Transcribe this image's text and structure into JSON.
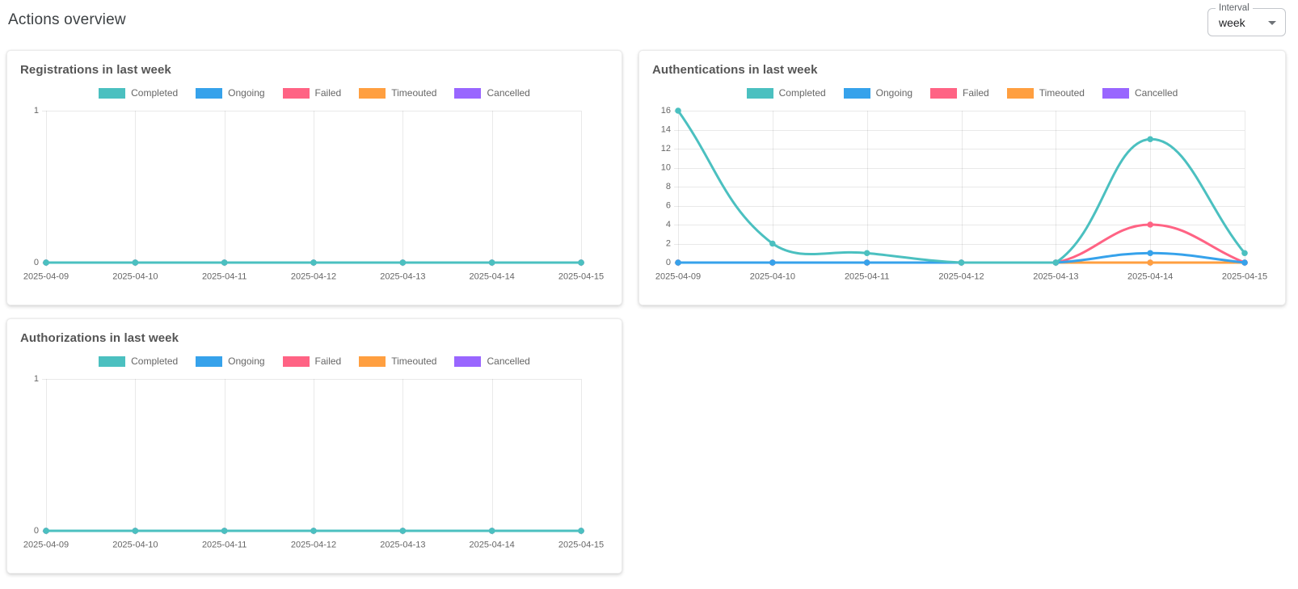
{
  "header": {
    "title": "Actions overview"
  },
  "interval_control": {
    "label": "Interval",
    "value": "week",
    "icon": "dropdown-arrow-icon"
  },
  "palette": {
    "completed": "#4BC0C0",
    "ongoing": "#36A2EB",
    "failed": "#FF6384",
    "timeouted": "#FF9F40",
    "cancelled": "#9966FF",
    "grid_line": "rgba(0,0,0,0.085)",
    "tick_text": "#666666"
  },
  "chart_data": [
    {
      "id": "registrations",
      "type": "line",
      "title": "Registrations in last week",
      "x": [
        "2025-04-09",
        "2025-04-10",
        "2025-04-11",
        "2025-04-12",
        "2025-04-13",
        "2025-04-14",
        "2025-04-15"
      ],
      "ylim": [
        0,
        1
      ],
      "y_ticks": [
        0,
        1
      ],
      "grid": true,
      "legend_position": "top",
      "series": [
        {
          "name": "Completed",
          "color": "#4BC0C0",
          "values": [
            0,
            0,
            0,
            0,
            0,
            0,
            0
          ]
        },
        {
          "name": "Ongoing",
          "color": "#36A2EB",
          "values": [
            0,
            0,
            0,
            0,
            0,
            0,
            0
          ]
        },
        {
          "name": "Failed",
          "color": "#FF6384",
          "values": [
            0,
            0,
            0,
            0,
            0,
            0,
            0
          ]
        },
        {
          "name": "Timeouted",
          "color": "#FF9F40",
          "values": [
            0,
            0,
            0,
            0,
            0,
            0,
            0
          ]
        },
        {
          "name": "Cancelled",
          "color": "#9966FF",
          "values": [
            0,
            0,
            0,
            0,
            0,
            0,
            0
          ]
        }
      ]
    },
    {
      "id": "authentications",
      "type": "line",
      "title": "Authentications in last week",
      "x": [
        "2025-04-09",
        "2025-04-10",
        "2025-04-11",
        "2025-04-12",
        "2025-04-13",
        "2025-04-14",
        "2025-04-15"
      ],
      "ylim": [
        0,
        16
      ],
      "y_ticks": [
        0,
        2,
        4,
        6,
        8,
        10,
        12,
        14,
        16
      ],
      "grid": true,
      "legend_position": "top",
      "series": [
        {
          "name": "Completed",
          "color": "#4BC0C0",
          "values": [
            16,
            2,
            1,
            0,
            0,
            13,
            1
          ]
        },
        {
          "name": "Ongoing",
          "color": "#36A2EB",
          "values": [
            0,
            0,
            0,
            0,
            0,
            1,
            0
          ]
        },
        {
          "name": "Failed",
          "color": "#FF6384",
          "values": [
            0,
            0,
            0,
            0,
            0,
            4,
            0
          ]
        },
        {
          "name": "Timeouted",
          "color": "#FF9F40",
          "values": [
            0,
            0,
            0,
            0,
            0,
            0,
            0
          ]
        },
        {
          "name": "Cancelled",
          "color": "#9966FF",
          "values": [
            0,
            0,
            0,
            0,
            0,
            0,
            0
          ]
        }
      ]
    },
    {
      "id": "authorizations",
      "type": "line",
      "title": "Authorizations in last week",
      "x": [
        "2025-04-09",
        "2025-04-10",
        "2025-04-11",
        "2025-04-12",
        "2025-04-13",
        "2025-04-14",
        "2025-04-15"
      ],
      "ylim": [
        0,
        1
      ],
      "y_ticks": [
        0,
        1
      ],
      "grid": true,
      "legend_position": "top",
      "series": [
        {
          "name": "Completed",
          "color": "#4BC0C0",
          "values": [
            0,
            0,
            0,
            0,
            0,
            0,
            0
          ]
        },
        {
          "name": "Ongoing",
          "color": "#36A2EB",
          "values": [
            0,
            0,
            0,
            0,
            0,
            0,
            0
          ]
        },
        {
          "name": "Failed",
          "color": "#FF6384",
          "values": [
            0,
            0,
            0,
            0,
            0,
            0,
            0
          ]
        },
        {
          "name": "Timeouted",
          "color": "#FF9F40",
          "values": [
            0,
            0,
            0,
            0,
            0,
            0,
            0
          ]
        },
        {
          "name": "Cancelled",
          "color": "#9966FF",
          "values": [
            0,
            0,
            0,
            0,
            0,
            0,
            0
          ]
        }
      ]
    }
  ]
}
